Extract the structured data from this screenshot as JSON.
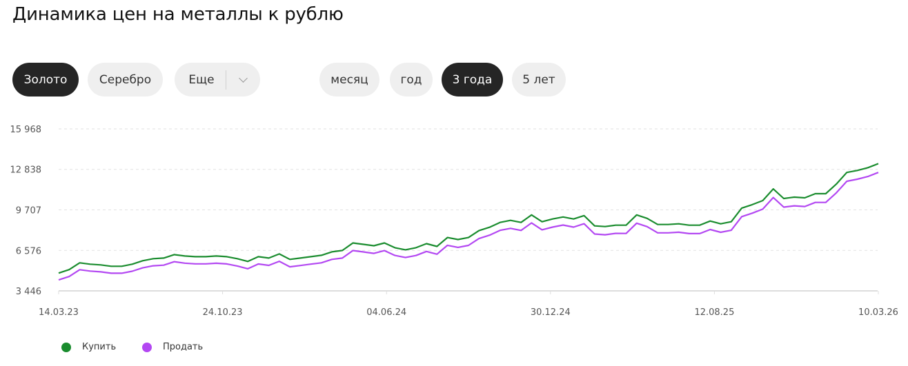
{
  "title": "Динамика цен на металлы к рублю",
  "metal_tabs": [
    {
      "label": "Золото",
      "active": true
    },
    {
      "label": "Серебро",
      "active": false
    },
    {
      "label": "Еще",
      "active": false
    }
  ],
  "period_tabs": [
    {
      "label": "месяц",
      "active": false
    },
    {
      "label": "год",
      "active": false
    },
    {
      "label": "3 года",
      "active": true
    },
    {
      "label": "5 лет",
      "active": false
    }
  ],
  "colors": {
    "buy": "#1a8c2e",
    "sell": "#b347f2"
  },
  "chart_data": {
    "type": "line",
    "title": "",
    "xlabel": "",
    "ylabel": "",
    "ylim": [
      3446,
      15968
    ],
    "yticks": [
      "3 446",
      "6 576",
      "9 707",
      "12 838",
      "15 968"
    ],
    "ytick_values": [
      3446,
      6576,
      9707,
      12838,
      15968
    ],
    "xticks": [
      "14.03.23",
      "24.10.23",
      "04.06.24",
      "30.12.24",
      "12.08.25",
      "10.03.26"
    ],
    "grid": true,
    "legend_position": "bottom-left",
    "series": [
      {
        "name": "Купить",
        "values": [
          4821,
          5086,
          5615,
          5509,
          5456,
          5350,
          5350,
          5509,
          5774,
          5932,
          5985,
          6250,
          6144,
          6091,
          6091,
          6144,
          6091,
          5932,
          5721,
          6091,
          5985,
          6303,
          5879,
          5985,
          6091,
          6197,
          6461,
          6567,
          7149,
          7043,
          6937,
          7149,
          6779,
          6620,
          6779,
          7096,
          6885,
          7572,
          7414,
          7572,
          8101,
          8366,
          8736,
          8895,
          8736,
          9318,
          8789,
          9001,
          9159,
          9001,
          9265,
          8472,
          8419,
          8524,
          8524,
          9318,
          9053,
          8577,
          8577,
          8630,
          8524,
          8524,
          8842,
          8630,
          8789,
          9847,
          10111,
          10429,
          11328,
          10588,
          10693,
          10640,
          10958,
          10958,
          11698,
          12598,
          12756,
          12968,
          13285
        ]
      },
      {
        "name": "Продать",
        "values": [
          4291,
          4554,
          5081,
          4973,
          4918,
          4810,
          4808,
          4965,
          5228,
          5384,
          5435,
          5698,
          5590,
          5535,
          5533,
          5584,
          5529,
          5368,
          5155,
          5523,
          5415,
          5731,
          5305,
          5409,
          5513,
          5617,
          5879,
          5983,
          6563,
          6455,
          6347,
          6557,
          6185,
          6024,
          6181,
          6496,
          6283,
          6968,
          6808,
          6964,
          7491,
          7754,
          8122,
          8279,
          8118,
          8698,
          8167,
          8377,
          8533,
          8373,
          8635,
          7840,
          7785,
          7888,
          7886,
          8678,
          8411,
          7933,
          7931,
          7982,
          7874,
          7872,
          8188,
          7974,
          8131,
          9187,
          9449,
          9765,
          10662,
          9920,
          10023,
          9968,
          10284,
          10282,
          11022,
          11920,
          12076,
          12286,
          12601
        ]
      }
    ]
  }
}
